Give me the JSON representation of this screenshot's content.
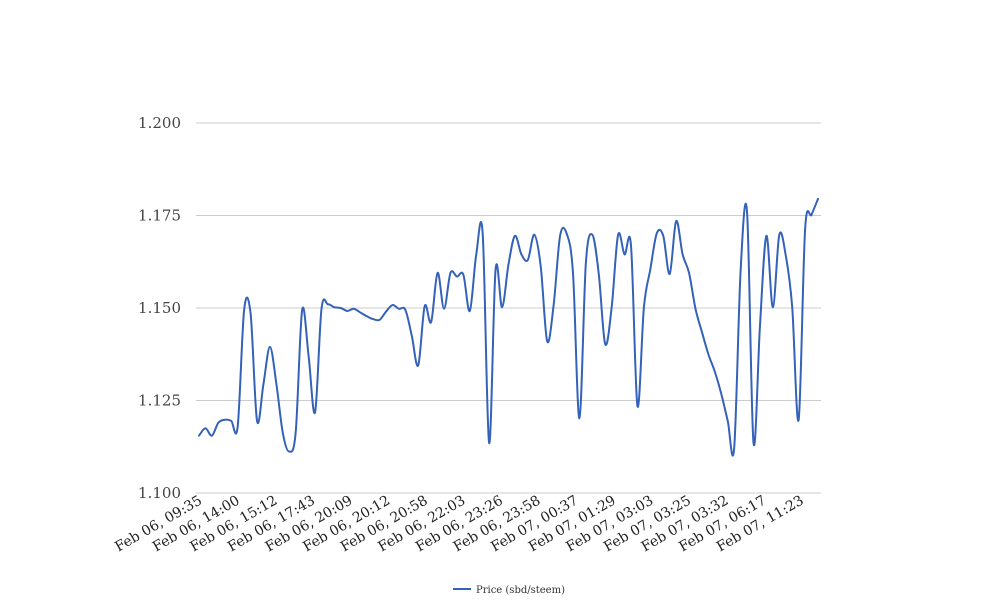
{
  "chart_data": {
    "type": "line",
    "title": "",
    "xlabel": "",
    "ylabel": "",
    "ylim": [
      1.1,
      1.2
    ],
    "y_ticks": [
      "1.100",
      "1.125",
      "1.150",
      "1.175",
      "1.200"
    ],
    "y_tick_values": [
      1.1,
      1.125,
      1.15,
      1.175,
      1.2
    ],
    "x_tick_labels": [
      "Feb 06, 09:35",
      "Feb 06, 14:00",
      "Feb 06, 15:12",
      "Feb 06, 17:43",
      "Feb 06, 20:09",
      "Feb 06, 20:12",
      "Feb 06, 20:58",
      "Feb 06, 22:03",
      "Feb 06, 23:26",
      "Feb 06, 23:58",
      "Feb 07, 00:37",
      "Feb 07, 01:29",
      "Feb 07, 03:03",
      "Feb 07, 03:25",
      "Feb 07, 03:32",
      "Feb 07, 06:17",
      "Feb 07, 11:23"
    ],
    "grid": true,
    "legend_position": "bottom",
    "color": "#3462b8",
    "series": [
      {
        "name": "Price (sbd/steem)",
        "values": [
          1.1155,
          1.1175,
          1.1155,
          1.119,
          1.1198,
          1.1195,
          1.118,
          1.1495,
          1.1485,
          1.1195,
          1.1295,
          1.1395,
          1.1295,
          1.1162,
          1.1112,
          1.1165,
          1.1495,
          1.137,
          1.1218,
          1.1498,
          1.151,
          1.1502,
          1.15,
          1.1492,
          1.1498,
          1.1488,
          1.1478,
          1.147,
          1.1468,
          1.149,
          1.1508,
          1.1498,
          1.1495,
          1.1425,
          1.1345,
          1.1505,
          1.1462,
          1.1595,
          1.1498,
          1.1595,
          1.1585,
          1.159,
          1.1492,
          1.1645,
          1.17,
          1.1135,
          1.1605,
          1.1502,
          1.1618,
          1.1695,
          1.1645,
          1.163,
          1.1698,
          1.1612,
          1.141,
          1.1508,
          1.1695,
          1.1702,
          1.1595,
          1.1202,
          1.1622,
          1.1698,
          1.1592,
          1.1402,
          1.1502,
          1.1698,
          1.1645,
          1.1668,
          1.1235,
          1.1502,
          1.1605,
          1.1702,
          1.1695,
          1.1592,
          1.1735,
          1.1645,
          1.1595,
          1.1498,
          1.1435,
          1.1375,
          1.1328,
          1.1268,
          1.1195,
          1.1122,
          1.1602,
          1.1758,
          1.1135,
          1.1452,
          1.1695,
          1.1502,
          1.1698,
          1.1642,
          1.1502,
          1.1198,
          1.1712,
          1.1752,
          1.1795
        ]
      }
    ]
  }
}
